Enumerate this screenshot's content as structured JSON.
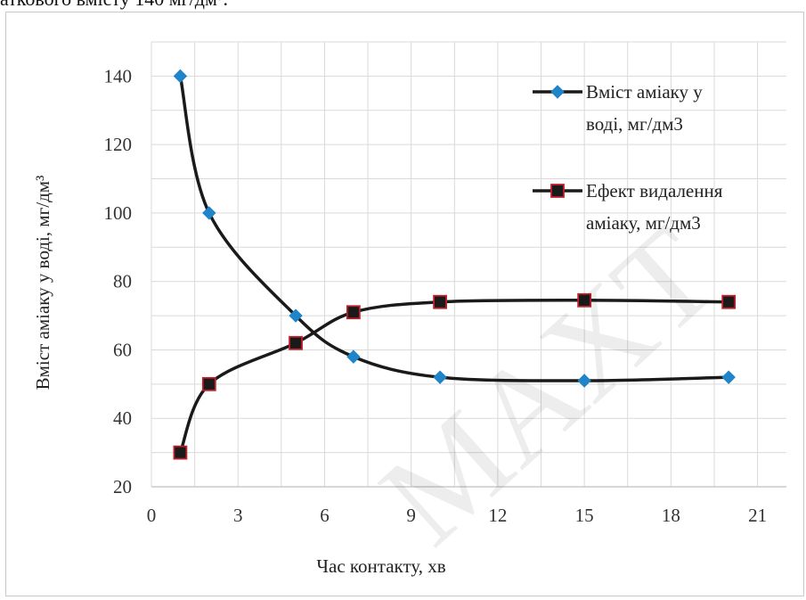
{
  "caption_fragment": "аткового вмісту 140 мг/дм³.",
  "watermark": "MAXT",
  "chart_data": {
    "type": "line",
    "title": "",
    "xlabel": "Час контакту, хв",
    "ylabel": "Вміст аміаку у воді, мг/дм³",
    "xlim": [
      0,
      22
    ],
    "ylim": [
      20,
      150
    ],
    "xticks": [
      0,
      3,
      6,
      9,
      12,
      15,
      18,
      21
    ],
    "yticks": [
      20,
      40,
      60,
      80,
      100,
      120,
      140
    ],
    "grid": true,
    "legend_position": "right",
    "series": [
      {
        "name": "Вміст аміаку у воді, мг/дм3",
        "legend_lines": [
          "Вміст аміаку у",
          "воді, мг/дм3"
        ],
        "marker": "diamond",
        "color": "#1f84c8",
        "line_color": "#1a1a1a",
        "x": [
          1,
          2,
          5,
          7,
          10,
          15,
          20
        ],
        "y": [
          140,
          100,
          70,
          58,
          52,
          51,
          52
        ]
      },
      {
        "name": "Ефект видалення аміаку, мг/дм3",
        "legend_lines": [
          "Ефект видалення",
          "аміаку, мг/дм3"
        ],
        "marker": "square",
        "color": "#1a1a1a",
        "edge_color": "#c0202a",
        "line_color": "#1a1a1a",
        "x": [
          1,
          2,
          5,
          7,
          10,
          15,
          20
        ],
        "y": [
          30,
          50,
          62,
          71,
          74,
          74.5,
          74
        ]
      }
    ]
  }
}
